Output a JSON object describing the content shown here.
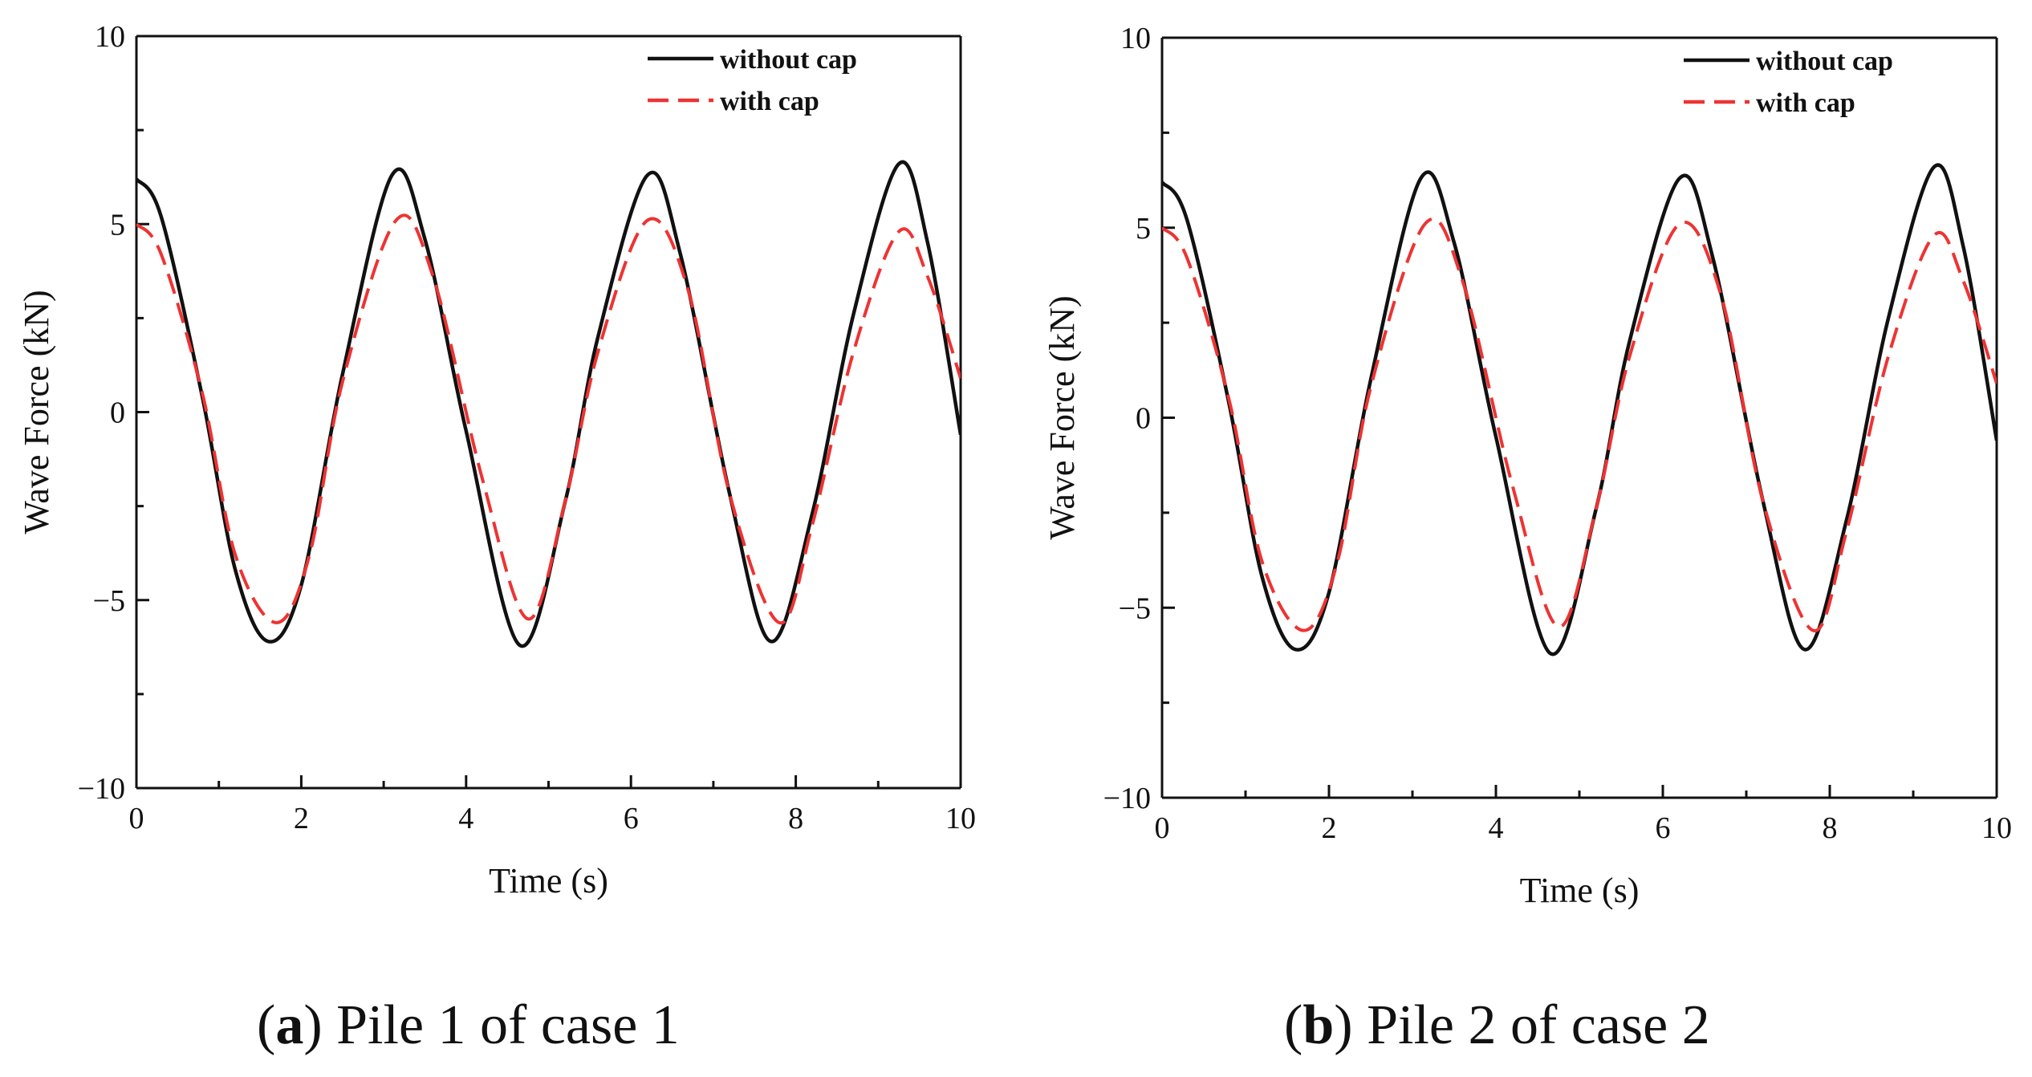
{
  "chart_data": [
    {
      "type": "line",
      "caption_letter": "a",
      "caption_text": "Pile 1 of case 1",
      "xlabel": "Time (s)",
      "ylabel": "Wave Force (kN)",
      "xlim": [
        0,
        10
      ],
      "ylim": [
        -10,
        10
      ],
      "x_ticks": [
        0,
        2,
        4,
        6,
        8,
        10
      ],
      "x_tick_labels": [
        "0",
        "2",
        "4",
        "6",
        "8",
        "10"
      ],
      "y_ticks": [
        -10,
        -5,
        0,
        5,
        10
      ],
      "y_tick_labels": [
        "−10",
        "−5",
        "0",
        "5",
        "10"
      ],
      "legend_position": "top-right",
      "series": [
        {
          "name": "without cap",
          "color": "#111111",
          "style": "solid",
          "x": [
            0,
            0.3,
            0.8,
            1.2,
            1.6,
            2.0,
            2.5,
            3.1,
            3.5,
            4.0,
            4.65,
            5.2,
            5.6,
            6.2,
            6.6,
            7.2,
            7.7,
            8.2,
            8.7,
            9.25,
            9.6,
            10.0
          ],
          "values": [
            6.2,
            5.2,
            0.4,
            -4.2,
            -6.1,
            -4.6,
            1.0,
            6.3,
            4.6,
            -0.5,
            -6.2,
            -2.4,
            2.0,
            6.3,
            4.2,
            -2.2,
            -6.1,
            -2.7,
            2.6,
            6.6,
            4.5,
            -0.6
          ]
        },
        {
          "name": "with cap",
          "color": "#ee3333",
          "style": "dashed",
          "x": [
            0,
            0.3,
            0.8,
            1.2,
            1.7,
            2.1,
            2.5,
            3.15,
            3.6,
            4.2,
            4.75,
            5.2,
            5.6,
            6.2,
            6.7,
            7.2,
            7.8,
            8.2,
            8.7,
            9.25,
            9.6,
            10.0
          ],
          "values": [
            5.0,
            4.2,
            0.5,
            -3.8,
            -5.6,
            -3.8,
            0.8,
            5.1,
            3.6,
            -1.8,
            -5.5,
            -2.4,
            1.6,
            5.1,
            3.2,
            -2.2,
            -5.6,
            -3.0,
            1.6,
            4.8,
            3.6,
            0.9
          ]
        }
      ]
    },
    {
      "type": "line",
      "caption_letter": "b",
      "caption_text": "Pile 2 of case 2",
      "xlabel": "Time (s)",
      "ylabel": "Wave Force (kN)",
      "xlim": [
        0,
        10
      ],
      "ylim": [
        -10,
        10
      ],
      "x_ticks": [
        0,
        2,
        4,
        6,
        8,
        10
      ],
      "x_tick_labels": [
        "0",
        "2",
        "4",
        "6",
        "8",
        "10"
      ],
      "y_ticks": [
        -10,
        -5,
        0,
        5,
        10
      ],
      "y_tick_labels": [
        "−10",
        "−5",
        "0",
        "5",
        "10"
      ],
      "legend_position": "top-right",
      "series": [
        {
          "name": "without cap",
          "color": "#111111",
          "style": "solid",
          "x": [
            0,
            0.3,
            0.8,
            1.2,
            1.6,
            2.0,
            2.5,
            3.1,
            3.5,
            4.0,
            4.65,
            5.2,
            5.6,
            6.2,
            6.6,
            7.2,
            7.7,
            8.2,
            8.7,
            9.25,
            9.6,
            10.0
          ],
          "values": [
            6.2,
            5.2,
            0.4,
            -4.2,
            -6.1,
            -4.6,
            1.0,
            6.3,
            4.6,
            -0.5,
            -6.2,
            -2.4,
            2.0,
            6.3,
            4.2,
            -2.2,
            -6.1,
            -2.7,
            2.6,
            6.6,
            4.5,
            -0.6
          ]
        },
        {
          "name": "with cap",
          "color": "#ee3333",
          "style": "dashed",
          "x": [
            0,
            0.3,
            0.8,
            1.2,
            1.7,
            2.1,
            2.5,
            3.15,
            3.6,
            4.2,
            4.75,
            5.2,
            5.6,
            6.2,
            6.7,
            7.2,
            7.8,
            8.2,
            8.7,
            9.25,
            9.6,
            10.0
          ],
          "values": [
            5.0,
            4.2,
            0.5,
            -3.8,
            -5.6,
            -3.8,
            0.8,
            5.1,
            3.6,
            -1.8,
            -5.5,
            -2.4,
            1.6,
            5.1,
            3.2,
            -2.2,
            -5.6,
            -3.0,
            1.6,
            4.8,
            3.6,
            0.9
          ]
        }
      ]
    }
  ]
}
